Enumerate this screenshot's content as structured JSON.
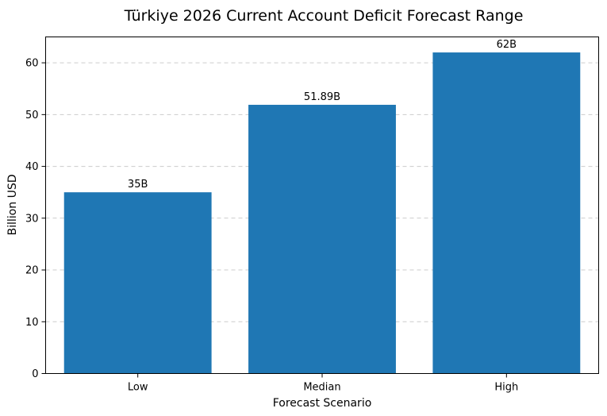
{
  "chart_data": {
    "type": "bar",
    "title": "Türkiye 2026 Current Account Deficit Forecast Range",
    "xlabel": "Forecast Scenario",
    "ylabel": "Billion USD",
    "categories": [
      "Low",
      "Median",
      "High"
    ],
    "values": [
      35,
      51.89,
      62
    ],
    "data_labels": [
      "35B",
      "51.89B",
      "62B"
    ],
    "ylim": [
      0,
      65
    ],
    "yticks": [
      0,
      10,
      20,
      30,
      40,
      50,
      60
    ],
    "grid": "y-dashed",
    "bar_color": "#1f77b4"
  }
}
